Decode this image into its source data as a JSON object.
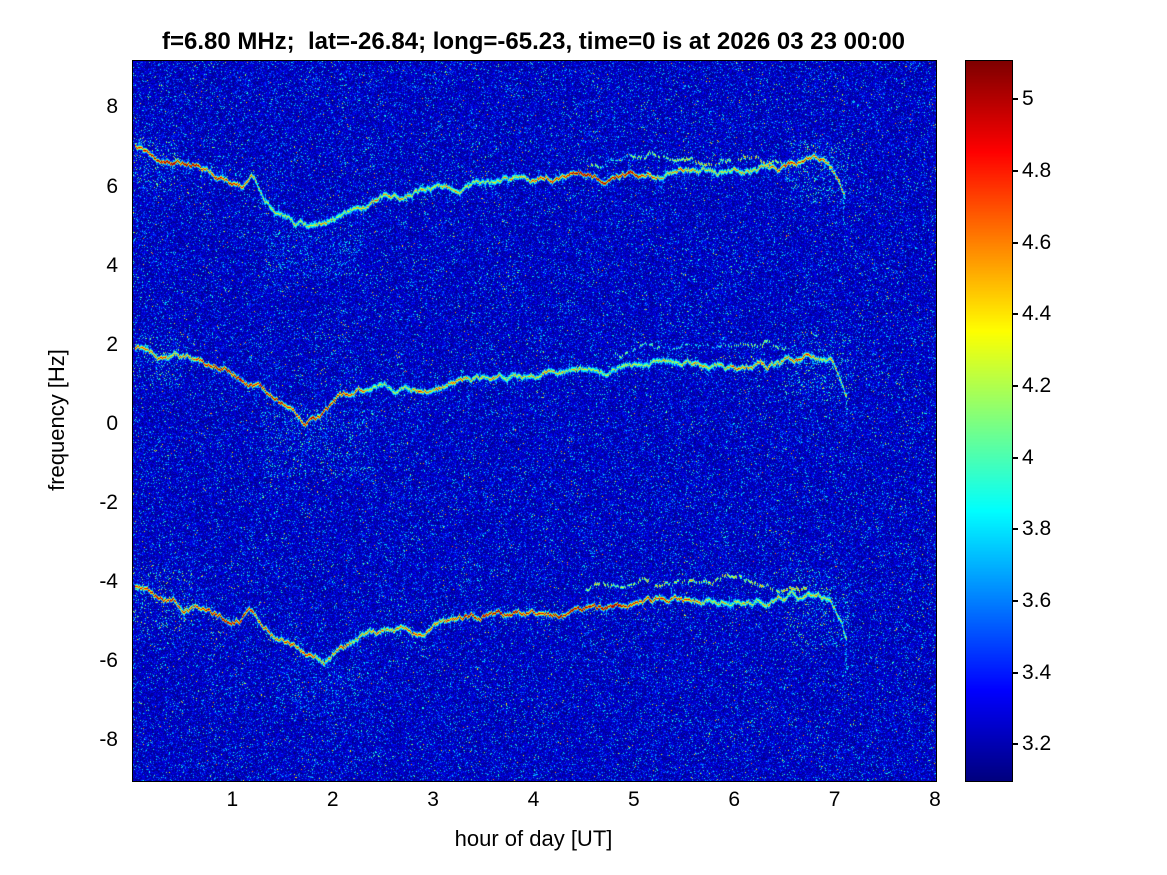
{
  "chart_data": {
    "type": "heatmap",
    "subtype": "doppler-spectrogram",
    "title": "f=6.80 MHz;  lat=-26.84; long=-65.23, time=0 is at 2026 03 23 00:00",
    "xlabel": "hour of day [UT]",
    "ylabel": "frequency [Hz]",
    "xlim": [
      0,
      8
    ],
    "ylim": [
      -9,
      9.2
    ],
    "xticks": [
      1,
      2,
      3,
      4,
      5,
      6,
      7,
      8
    ],
    "yticks": [
      8,
      6,
      4,
      2,
      0,
      -2,
      -4,
      -6,
      -8
    ],
    "grid": false,
    "colorbar": {
      "min": 3.1,
      "max": 5.11,
      "ticks": [
        5,
        4.8,
        4.6,
        4.4,
        4.2,
        4,
        3.8,
        3.6,
        3.4,
        3.2
      ],
      "colormap": "jet",
      "position": "right"
    },
    "noise_floor": 3.1,
    "traces": [
      {
        "name": "upper-doppler-trace",
        "core": 4.75,
        "halo": 1,
        "tail": 0.8,
        "points": [
          [
            0.02,
            7.05
          ],
          [
            0.15,
            6.9
          ],
          [
            0.35,
            6.65
          ],
          [
            0.55,
            6.5
          ],
          [
            0.75,
            6.4
          ],
          [
            0.95,
            6.15
          ],
          [
            1.1,
            6.05
          ],
          [
            1.18,
            6.35
          ],
          [
            1.3,
            5.8
          ],
          [
            1.45,
            5.3
          ],
          [
            1.6,
            5.0
          ],
          [
            1.75,
            4.95
          ],
          [
            1.9,
            5.05
          ],
          [
            2.05,
            5.25
          ],
          [
            2.2,
            5.5
          ],
          [
            2.35,
            5.65
          ],
          [
            2.5,
            5.8
          ],
          [
            2.65,
            5.7
          ],
          [
            2.85,
            5.9
          ],
          [
            3.05,
            6.0
          ],
          [
            3.3,
            6.05
          ],
          [
            3.55,
            6.1
          ],
          [
            3.8,
            6.15
          ],
          [
            4.05,
            6.2
          ],
          [
            4.3,
            6.25
          ],
          [
            4.55,
            6.3
          ],
          [
            4.8,
            6.3
          ],
          [
            5.05,
            6.35
          ],
          [
            5.3,
            6.4
          ],
          [
            5.55,
            6.45
          ],
          [
            5.8,
            6.4
          ],
          [
            6.05,
            6.45
          ],
          [
            6.3,
            6.5
          ],
          [
            6.55,
            6.55
          ],
          [
            6.75,
            6.7
          ],
          [
            6.9,
            6.6
          ],
          [
            7.0,
            6.3
          ],
          [
            7.08,
            5.8
          ]
        ]
      },
      {
        "name": "center-doppler-trace",
        "core": 4.7,
        "halo": 1,
        "tail": 0.9,
        "points": [
          [
            0.02,
            1.95
          ],
          [
            0.2,
            1.8
          ],
          [
            0.45,
            1.7
          ],
          [
            0.7,
            1.5
          ],
          [
            0.9,
            1.4
          ],
          [
            1.1,
            1.2
          ],
          [
            1.25,
            1.0
          ],
          [
            1.4,
            0.75
          ],
          [
            1.55,
            0.45
          ],
          [
            1.7,
            0.1
          ],
          [
            1.85,
            0.2
          ],
          [
            2.0,
            0.55
          ],
          [
            2.15,
            0.8
          ],
          [
            2.3,
            0.95
          ],
          [
            2.5,
            1.0
          ],
          [
            2.7,
            0.95
          ],
          [
            2.9,
            1.0
          ],
          [
            3.1,
            1.1
          ],
          [
            3.35,
            1.2
          ],
          [
            3.6,
            1.25
          ],
          [
            3.85,
            1.3
          ],
          [
            4.1,
            1.3
          ],
          [
            4.35,
            1.35
          ],
          [
            4.6,
            1.4
          ],
          [
            4.85,
            1.45
          ],
          [
            5.1,
            1.55
          ],
          [
            5.35,
            1.6
          ],
          [
            5.6,
            1.55
          ],
          [
            5.85,
            1.5
          ],
          [
            6.1,
            1.45
          ],
          [
            6.35,
            1.5
          ],
          [
            6.6,
            1.6
          ],
          [
            6.8,
            1.7
          ],
          [
            6.95,
            1.6
          ],
          [
            7.05,
            1.1
          ],
          [
            7.1,
            0.7
          ]
        ]
      },
      {
        "name": "lower-doppler-trace",
        "core": 4.8,
        "halo": 1,
        "tail": 0.9,
        "points": [
          [
            0.02,
            -4.05
          ],
          [
            0.2,
            -4.2
          ],
          [
            0.45,
            -4.45
          ],
          [
            0.7,
            -4.6
          ],
          [
            0.9,
            -4.85
          ],
          [
            1.05,
            -4.9
          ],
          [
            1.15,
            -4.6
          ],
          [
            1.3,
            -5.0
          ],
          [
            1.45,
            -5.35
          ],
          [
            1.6,
            -5.6
          ],
          [
            1.75,
            -5.9
          ],
          [
            1.9,
            -5.95
          ],
          [
            2.05,
            -5.7
          ],
          [
            2.2,
            -5.45
          ],
          [
            2.35,
            -5.3
          ],
          [
            2.5,
            -5.15
          ],
          [
            2.65,
            -5.1
          ],
          [
            2.8,
            -5.2
          ],
          [
            3.0,
            -5.0
          ],
          [
            3.2,
            -4.95
          ],
          [
            3.45,
            -4.9
          ],
          [
            3.7,
            -4.8
          ],
          [
            3.95,
            -4.75
          ],
          [
            4.2,
            -4.7
          ],
          [
            4.45,
            -4.65
          ],
          [
            4.7,
            -4.6
          ],
          [
            4.95,
            -4.55
          ],
          [
            5.2,
            -4.5
          ],
          [
            5.45,
            -4.45
          ],
          [
            5.7,
            -4.45
          ],
          [
            5.95,
            -4.5
          ],
          [
            6.2,
            -4.45
          ],
          [
            6.45,
            -4.4
          ],
          [
            6.65,
            -4.25
          ],
          [
            6.8,
            -4.35
          ],
          [
            6.95,
            -4.45
          ],
          [
            7.05,
            -4.9
          ],
          [
            7.1,
            -5.4
          ]
        ]
      }
    ],
    "secondary_traces": [
      {
        "name": "upper-secondary-wisp",
        "core": 4.15,
        "halo": 0.3,
        "gap": 0.35,
        "points": [
          [
            4.55,
            6.55
          ],
          [
            4.9,
            6.7
          ],
          [
            5.2,
            6.85
          ],
          [
            5.5,
            6.75
          ],
          [
            5.8,
            6.7
          ],
          [
            6.1,
            6.85
          ],
          [
            6.35,
            6.75
          ],
          [
            6.6,
            6.65
          ]
        ]
      },
      {
        "name": "center-secondary-wisp",
        "core": 3.95,
        "halo": 0.3,
        "gap": 0.5,
        "points": [
          [
            4.8,
            1.85
          ],
          [
            5.1,
            2.0
          ],
          [
            5.4,
            2.1
          ],
          [
            5.7,
            2.0
          ],
          [
            6.0,
            1.95
          ],
          [
            6.3,
            2.05
          ],
          [
            6.5,
            1.9
          ]
        ]
      },
      {
        "name": "lower-secondary-wisp",
        "core": 4.15,
        "halo": 0.3,
        "gap": 0.35,
        "points": [
          [
            4.5,
            -4.15
          ],
          [
            4.8,
            -4.0
          ],
          [
            5.1,
            -3.85
          ],
          [
            5.35,
            -3.95
          ],
          [
            5.6,
            -4.05
          ],
          [
            5.9,
            -3.85
          ],
          [
            6.2,
            -3.95
          ],
          [
            6.5,
            -4.05
          ],
          [
            6.7,
            -4.15
          ]
        ]
      }
    ],
    "streaks": [
      {
        "x": 2.05,
        "y0": 0.9,
        "y1": 4.7
      },
      {
        "x": 2.62,
        "y0": 1.1,
        "y1": 3.9
      },
      {
        "x": 4.05,
        "y0": 1.4,
        "y1": 2.6
      }
    ],
    "scatter_regions": [
      {
        "x0": 1.25,
        "x1": 2.4,
        "y0": -1.3,
        "y1": 0.4,
        "n": 700,
        "vmax": 4.1
      },
      {
        "x0": 1.3,
        "x1": 2.3,
        "y0": 3.7,
        "y1": 4.9,
        "n": 450,
        "vmax": 4.0
      },
      {
        "x0": 1.4,
        "x1": 2.4,
        "y0": -7.3,
        "y1": -6.0,
        "n": 400,
        "vmax": 3.9
      },
      {
        "x0": 6.5,
        "x1": 7.15,
        "y0": 5.6,
        "y1": 7.2,
        "n": 500,
        "vmax": 4.2
      },
      {
        "x0": 6.5,
        "x1": 7.15,
        "y0": 0.6,
        "y1": 2.3,
        "n": 450,
        "vmax": 4.2
      },
      {
        "x0": 6.5,
        "x1": 7.15,
        "y0": -5.6,
        "y1": -3.6,
        "n": 500,
        "vmax": 4.2
      },
      {
        "x0": 0,
        "x1": 0.45,
        "y0": 5.9,
        "y1": 7.3,
        "n": 260,
        "vmax": 4.3
      },
      {
        "x0": 0,
        "x1": 0.5,
        "y0": 0.9,
        "y1": 2.3,
        "n": 240,
        "vmax": 4.2
      },
      {
        "x0": 0,
        "x1": 0.6,
        "y0": -5.2,
        "y1": -3.6,
        "n": 300,
        "vmax": 4.4
      }
    ]
  }
}
